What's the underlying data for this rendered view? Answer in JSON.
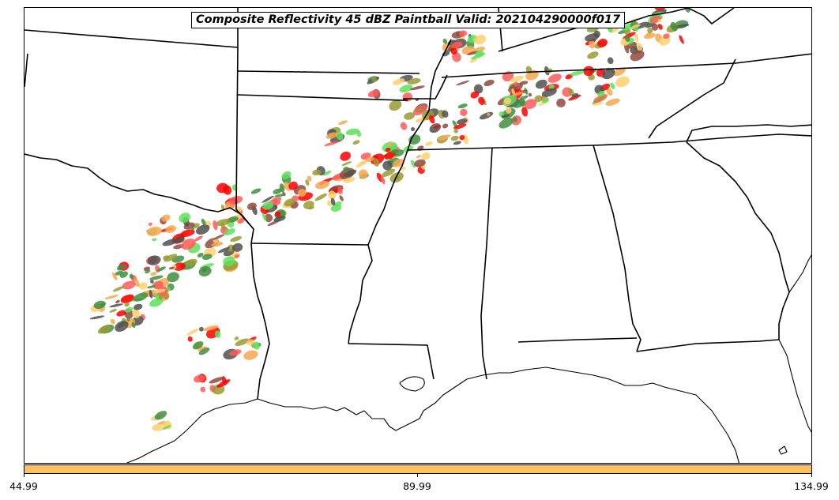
{
  "title": "Composite Reflectivity 45 dBZ Paintball Valid: 202104290000f017",
  "colorbar": {
    "color": "#ffc060",
    "ticks": [
      "44.99",
      "89.99",
      "134.99"
    ]
  },
  "paintball_colors": [
    "#ff5a5a",
    "#5de05a",
    "#f7a850",
    "#9a9a30",
    "#8f4a3f",
    "#3f8f3f",
    "#505050",
    "#ff0000",
    "#ffd070"
  ],
  "icons": [
    "state-boundary-lines",
    "coastline"
  ]
}
